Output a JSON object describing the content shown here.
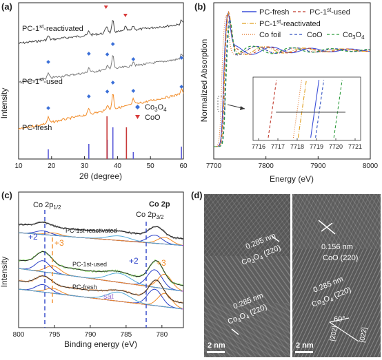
{
  "figure": {
    "panels": [
      "(a)",
      "(b)",
      "(c)",
      "(d)"
    ]
  },
  "chart_data": [
    {
      "type": "line",
      "panel": "(a)",
      "xlabel": "2θ (degree)",
      "ylabel": "Intensity",
      "xlim": [
        10,
        60
      ],
      "xticks": [
        "10",
        "20",
        "30",
        "40",
        "50",
        "60"
      ],
      "series": [
        {
          "name": "PC-1st-reactivated",
          "label_main": "PC-1",
          "label_sup": "st",
          "label_rest": "-reactivated",
          "color": "#444444"
        },
        {
          "name": "PC-1st-used",
          "label_main": "PC-1",
          "label_sup": "st",
          "label_rest": "-used",
          "color": "#7a7a7a"
        },
        {
          "name": "PC-fresh",
          "label_main": "PC-fresh",
          "label_sup": "",
          "label_rest": "",
          "color": "#f28c28"
        }
      ],
      "legend": [
        {
          "label_main": "Co",
          "label_sub1": "3",
          "label_mid": "O",
          "label_sub2": "4",
          "marker": "diamond",
          "color": "#3a6fd8"
        },
        {
          "label_main": "CoO",
          "label_sub1": "",
          "label_mid": "",
          "label_sub2": "",
          "marker": "triangle",
          "color": "#d83a3a"
        }
      ],
      "reference_lines": {
        "Co3O4": [
          19.0,
          31.3,
          36.9,
          38.6,
          44.8,
          59.4
        ],
        "CoO": [
          36.5,
          42.4
        ]
      }
    },
    {
      "type": "line",
      "panel": "(b)",
      "xlabel": "Energy (eV)",
      "ylabel": "Normalized Absorption",
      "xlim": [
        7700,
        8000
      ],
      "xticks": [
        "7700",
        "7800",
        "7900",
        "8000"
      ],
      "series": [
        {
          "name": "PC-fresh",
          "color": "#3a4fd8",
          "style": "solid"
        },
        {
          "name": "PC-1st-used",
          "color": "#c0392b",
          "style": "dash"
        },
        {
          "name": "PC-1st-reactivated",
          "color": "#e0a020",
          "style": "dashdot"
        },
        {
          "name": "Co foil",
          "color": "#e07020",
          "style": "dot"
        },
        {
          "name": "CoO",
          "color": "#3050c0",
          "style": "dash"
        },
        {
          "name": "Co3O4",
          "color": "#2a9a3a",
          "style": "dash"
        }
      ],
      "inset": {
        "xticks": [
          "7716",
          "7717",
          "7718",
          "7719",
          "7720",
          "7721"
        ]
      }
    },
    {
      "type": "line",
      "panel": "(c)",
      "title": "Co 2p",
      "xlabel": "Binding energy (eV)",
      "ylabel": "Intensity",
      "xlim": [
        800,
        777
      ],
      "xticks": [
        "800",
        "795",
        "790",
        "785",
        "780"
      ],
      "series": [
        {
          "name": "PC-1st-reactivated"
        },
        {
          "name": "PC-1st-used"
        },
        {
          "name": "PC-fresh"
        }
      ],
      "annotations": {
        "co2p12": "Co 2p",
        "co2p12_sub": "1/2",
        "co2p32": "Co 2p",
        "co2p32_sub": "3/2",
        "plus2": "+2",
        "plus3": "+3",
        "sat": "sat"
      }
    }
  ],
  "tem": {
    "left": {
      "d1": "0.285 nm",
      "p1_main": "Co",
      "p1_s1": "3",
      "p1_mid": "O",
      "p1_s2": "4",
      "p1_tail": " (220)",
      "d2": "0.285 nm",
      "p2_main": "Co",
      "p2_s1": "3",
      "p2_mid": "O",
      "p2_s2": "4",
      "p2_tail": " (220)",
      "scale": "2 nm"
    },
    "right": {
      "d1": "0.156 nm",
      "p1": "CoO (220)",
      "d2": "0.285 nm",
      "p2_main": "Co",
      "p2_s1": "3",
      "p2_mid": "O",
      "p2_s2": "4",
      "p2_tail": " (220)",
      "angle": "60°",
      "idx1": "[202]",
      "idx2": "[022]",
      "scale": "2 nm"
    }
  }
}
